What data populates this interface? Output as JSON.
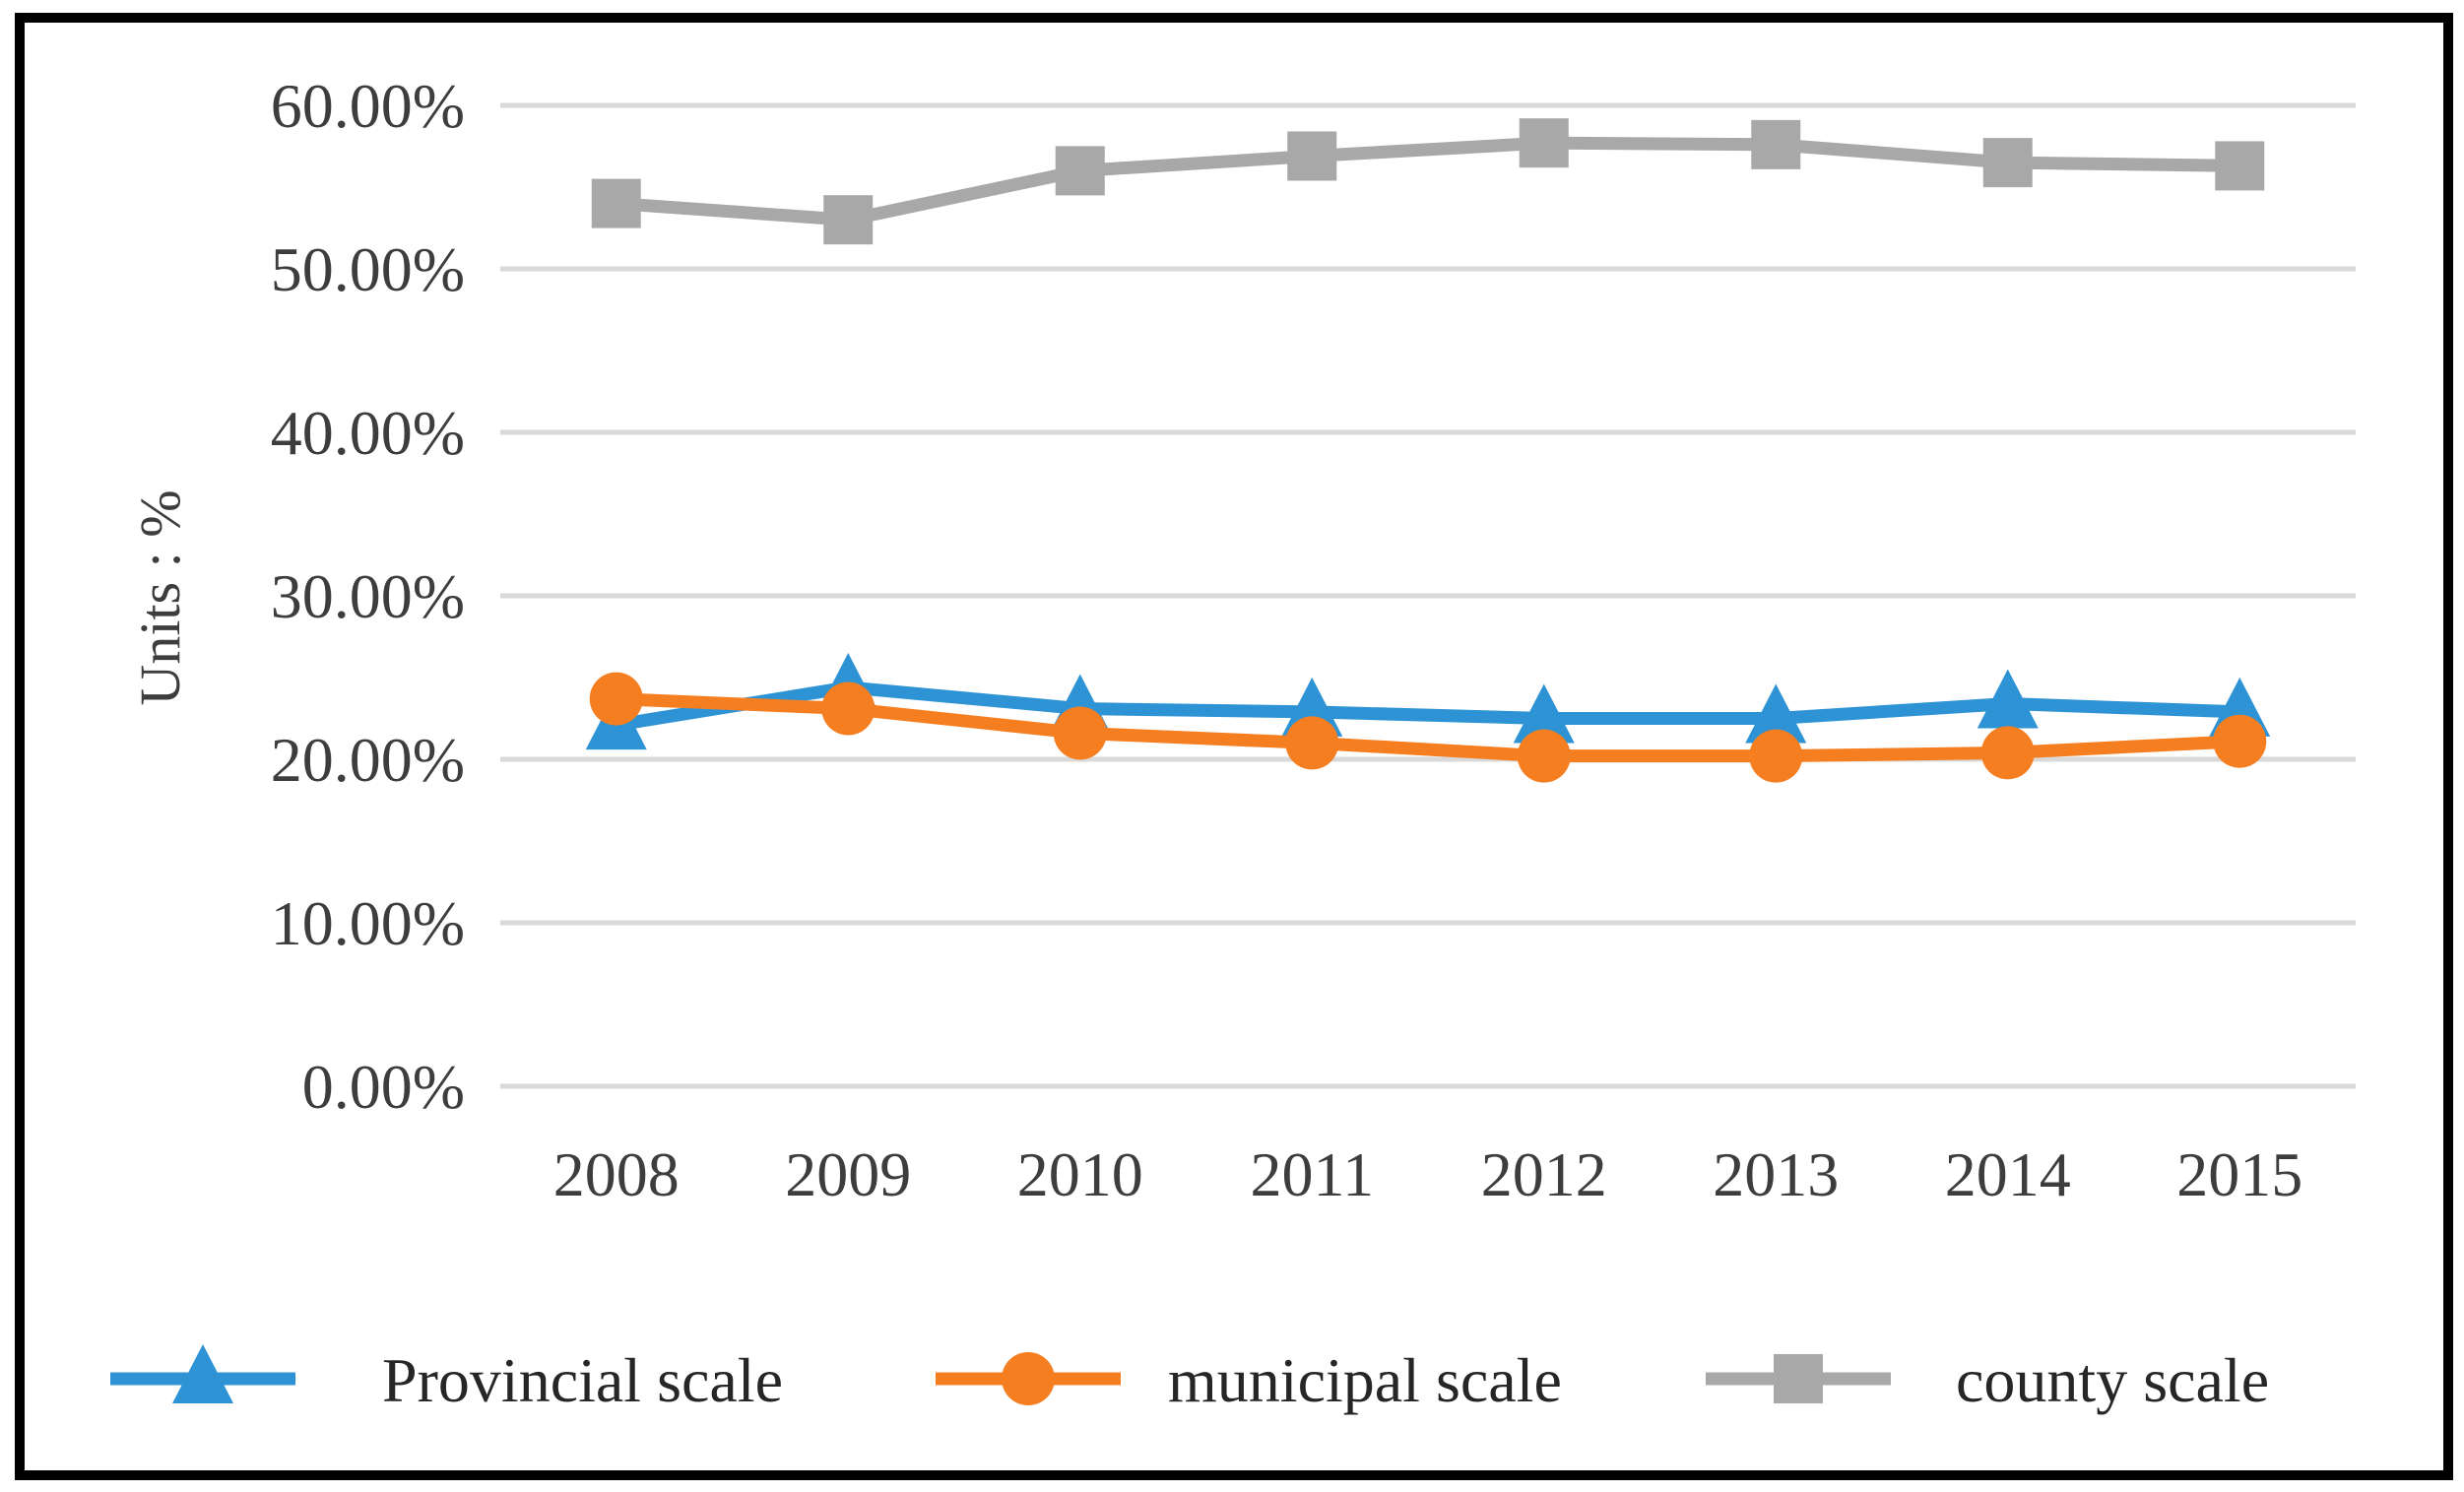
{
  "figure": {
    "background_color": "#ffffff",
    "border_color": "#000000",
    "text_color": "#3d3d3d",
    "legend_text_color": "#262626",
    "gridline_color": "#d9d9d9"
  },
  "chart_data": {
    "type": "line",
    "title": "",
    "xlabel": "",
    "ylabel": "Units : %",
    "categories": [
      "2008",
      "2009",
      "2010",
      "2011",
      "2012",
      "2013",
      "2014",
      "2015"
    ],
    "y_ticks": [
      "0.00%",
      "10.00%",
      "20.00%",
      "30.00%",
      "40.00%",
      "50.00%",
      "60.00%"
    ],
    "ylim": [
      0,
      60
    ],
    "grid": "horizontal",
    "legend_position": "bottom",
    "series": [
      {
        "name": "Provincial scale",
        "marker": "triangle",
        "color": "#2e93d4",
        "values": [
          22.1,
          24.4,
          23.1,
          22.9,
          22.5,
          22.5,
          23.4,
          22.9
        ]
      },
      {
        "name": "municipal scale",
        "marker": "circle",
        "color": "#f57e21",
        "values": [
          23.7,
          23.1,
          21.6,
          21.0,
          20.2,
          20.2,
          20.4,
          21.1
        ]
      },
      {
        "name": "county scale",
        "marker": "square",
        "color": "#a8a8a8",
        "values": [
          54.0,
          53.0,
          56.0,
          56.9,
          57.7,
          57.6,
          56.5,
          56.3
        ]
      }
    ]
  }
}
